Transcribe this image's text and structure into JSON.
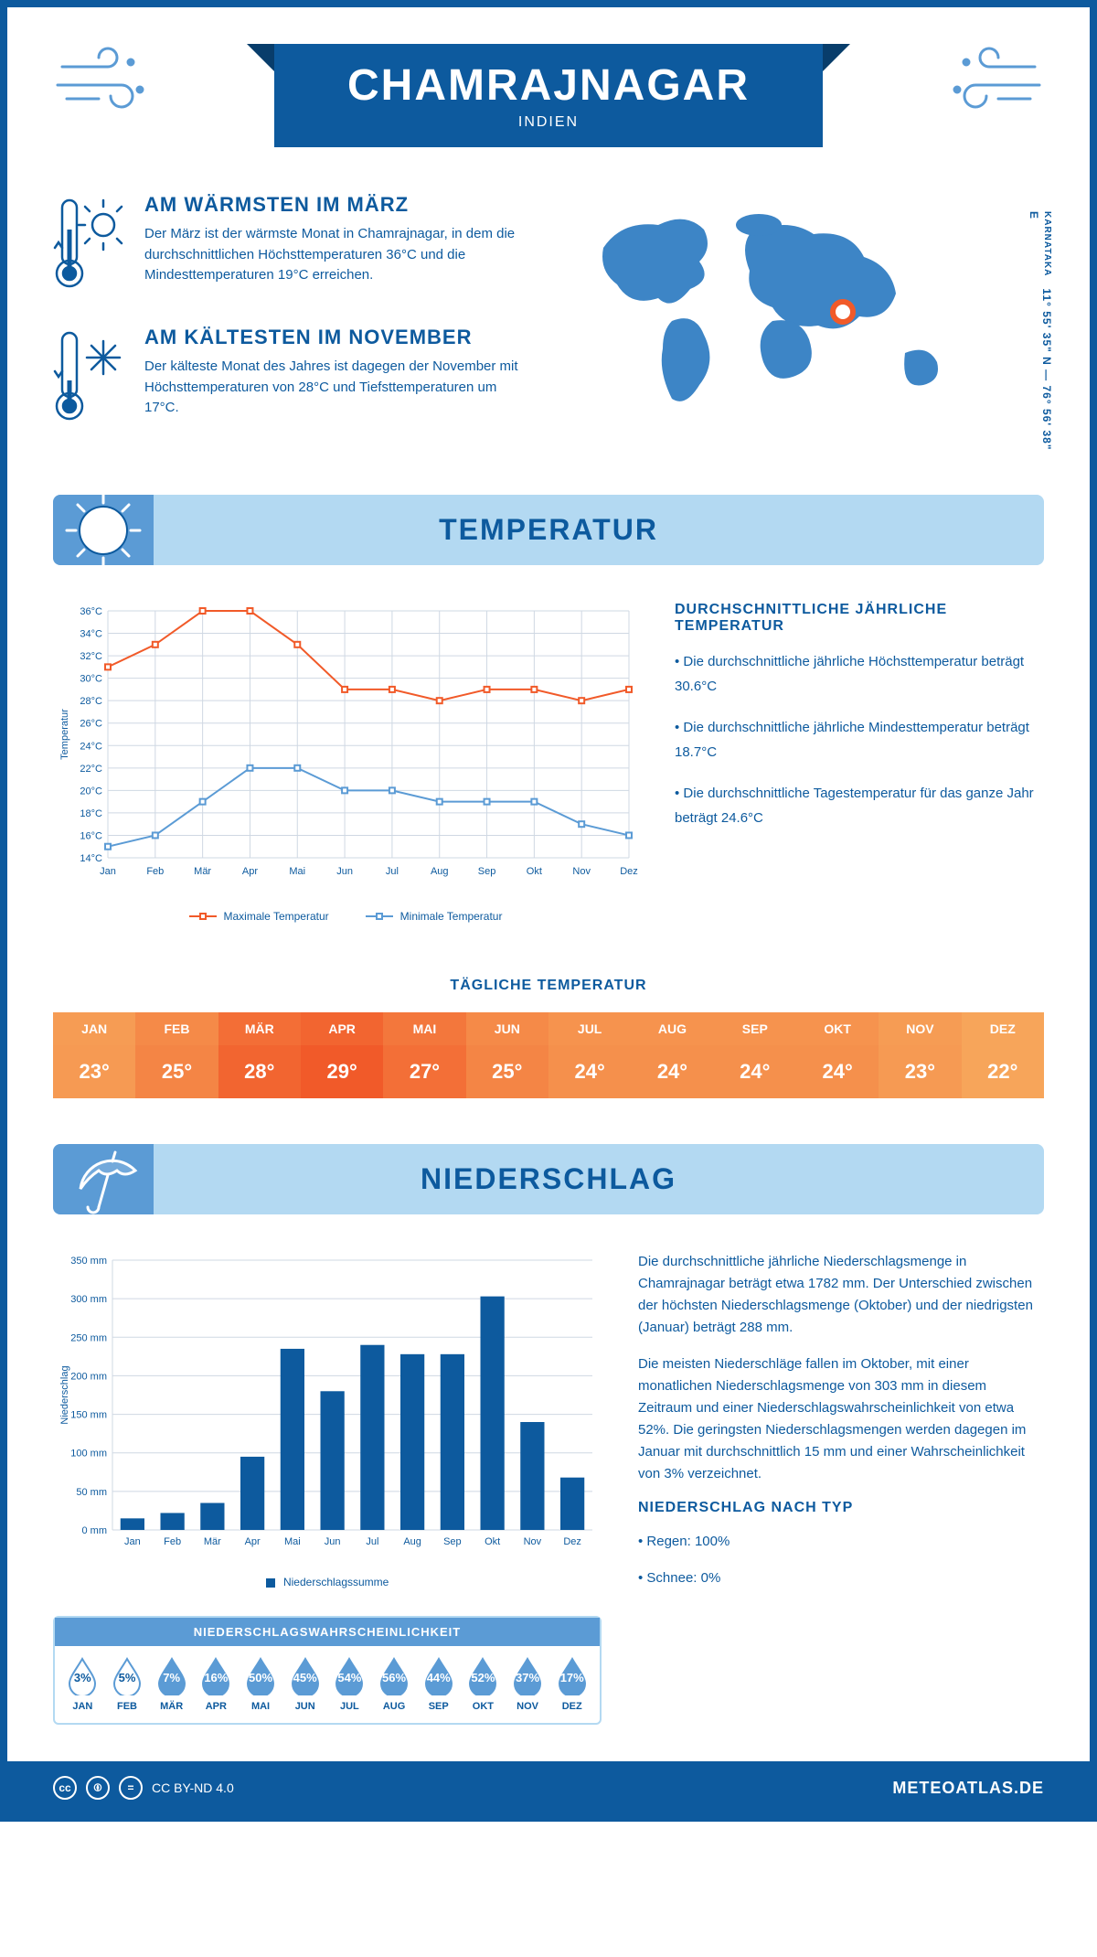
{
  "header": {
    "title": "CHAMRAJNAGAR",
    "subtitle": "INDIEN"
  },
  "coords": {
    "text": "11° 55' 35\" N — 76° 56' 38\" E",
    "region": "KARNATAKA"
  },
  "facts": {
    "warm": {
      "title": "AM WÄRMSTEN IM MÄRZ",
      "text": "Der März ist der wärmste Monat in Chamrajnagar, in dem die durchschnittlichen Höchsttemperaturen 36°C und die Mindesttemperaturen 19°C erreichen."
    },
    "cold": {
      "title": "AM KÄLTESTEN IM NOVEMBER",
      "text": "Der kälteste Monat des Jahres ist dagegen der November mit Höchsttemperaturen von 28°C und Tiefsttemperaturen um 17°C."
    }
  },
  "sections": {
    "temp": "TEMPERATUR",
    "precip": "NIEDERSCHLAG"
  },
  "temp_chart": {
    "type": "line",
    "months": [
      "Jan",
      "Feb",
      "Mär",
      "Apr",
      "Mai",
      "Jun",
      "Jul",
      "Aug",
      "Sep",
      "Okt",
      "Nov",
      "Dez"
    ],
    "y_ticks": [
      14,
      16,
      18,
      20,
      22,
      24,
      26,
      28,
      30,
      32,
      34,
      36
    ],
    "y_tick_labels": [
      "14°C",
      "16°C",
      "18°C",
      "20°C",
      "22°C",
      "24°C",
      "26°C",
      "28°C",
      "30°C",
      "32°C",
      "34°C",
      "36°C"
    ],
    "ylim": [
      14,
      36
    ],
    "y_axis_label": "Temperatur",
    "series": {
      "max": {
        "label": "Maximale Temperatur",
        "color": "#f15a29",
        "values": [
          31,
          33,
          36,
          36,
          33,
          29,
          29,
          28,
          29,
          29,
          28,
          29
        ]
      },
      "min": {
        "label": "Minimale Temperatur",
        "color": "#5b9bd5",
        "values": [
          15,
          16,
          19,
          22,
          22,
          20,
          20,
          19,
          19,
          19,
          17,
          16
        ]
      }
    },
    "grid_color": "#cfd8e3",
    "marker_size": 4,
    "line_width": 2
  },
  "temp_desc": {
    "title": "DURCHSCHNITTLICHE JÄHRLICHE TEMPERATUR",
    "bullets": [
      "• Die durchschnittliche jährliche Höchsttemperatur beträgt 30.6°C",
      "• Die durchschnittliche jährliche Mindesttemperatur beträgt 18.7°C",
      "• Die durchschnittliche Tagestemperatur für das ganze Jahr beträgt 24.6°C"
    ]
  },
  "daily_temp": {
    "title": "TÄGLICHE TEMPERATUR",
    "months": [
      "JAN",
      "FEB",
      "MÄR",
      "APR",
      "MAI",
      "JUN",
      "JUL",
      "AUG",
      "SEP",
      "OKT",
      "NOV",
      "DEZ"
    ],
    "values": [
      "23°",
      "25°",
      "28°",
      "29°",
      "27°",
      "25°",
      "24°",
      "24°",
      "24°",
      "24°",
      "23°",
      "22°"
    ],
    "numeric": [
      23,
      25,
      28,
      29,
      27,
      25,
      24,
      24,
      24,
      24,
      23,
      22
    ],
    "color_scale": {
      "min_color": "#f7a55a",
      "max_color": "#f15a29",
      "min_val": 22,
      "max_val": 29
    }
  },
  "precip_chart": {
    "type": "bar",
    "months": [
      "Jan",
      "Feb",
      "Mär",
      "Apr",
      "Mai",
      "Jun",
      "Jul",
      "Aug",
      "Sep",
      "Okt",
      "Nov",
      "Dez"
    ],
    "values": [
      15,
      22,
      35,
      95,
      235,
      180,
      240,
      228,
      228,
      303,
      140,
      68
    ],
    "y_ticks": [
      0,
      50,
      100,
      150,
      200,
      250,
      300,
      350
    ],
    "y_tick_labels": [
      "0 mm",
      "50 mm",
      "100 mm",
      "150 mm",
      "200 mm",
      "250 mm",
      "300 mm",
      "350 mm"
    ],
    "ylim": [
      0,
      350
    ],
    "y_axis_label": "Niederschlag",
    "bar_color": "#0d5a9e",
    "grid_color": "#cfd8e3",
    "bar_width": 0.6,
    "legend_label": "Niederschlagssumme"
  },
  "precip_desc": {
    "p1": "Die durchschnittliche jährliche Niederschlagsmenge in Chamrajnagar beträgt etwa 1782 mm. Der Unterschied zwischen der höchsten Niederschlagsmenge (Oktober) und der niedrigsten (Januar) beträgt 288 mm.",
    "p2": "Die meisten Niederschläge fallen im Oktober, mit einer monatlichen Niederschlagsmenge von 303 mm in diesem Zeitraum und einer Niederschlagswahrscheinlichkeit von etwa 52%. Die geringsten Niederschlagsmengen werden dagegen im Januar mit durchschnittlich 15 mm und einer Wahrscheinlichkeit von 3% verzeichnet.",
    "by_type_title": "NIEDERSCHLAG NACH TYP",
    "by_type": [
      "• Regen: 100%",
      "• Schnee: 0%"
    ]
  },
  "precip_prob": {
    "title": "NIEDERSCHLAGSWAHRSCHEINLICHKEIT",
    "months": [
      "JAN",
      "FEB",
      "MÄR",
      "APR",
      "MAI",
      "JUN",
      "JUL",
      "AUG",
      "SEP",
      "OKT",
      "NOV",
      "DEZ"
    ],
    "pct": [
      "3%",
      "5%",
      "7%",
      "16%",
      "50%",
      "45%",
      "54%",
      "56%",
      "44%",
      "52%",
      "37%",
      "17%"
    ],
    "numeric": [
      3,
      5,
      7,
      16,
      50,
      45,
      54,
      56,
      44,
      52,
      37,
      17
    ],
    "low_threshold": 6,
    "fill_color": "#5b9bd5",
    "outline_color": "#5b9bd5"
  },
  "footer": {
    "license": "CC BY-ND 4.0",
    "site": "METEOATLAS.DE"
  },
  "colors": {
    "primary": "#0d5a9e",
    "light": "#b3d9f2",
    "accent": "#5b9bd5",
    "orange": "#f15a29"
  }
}
